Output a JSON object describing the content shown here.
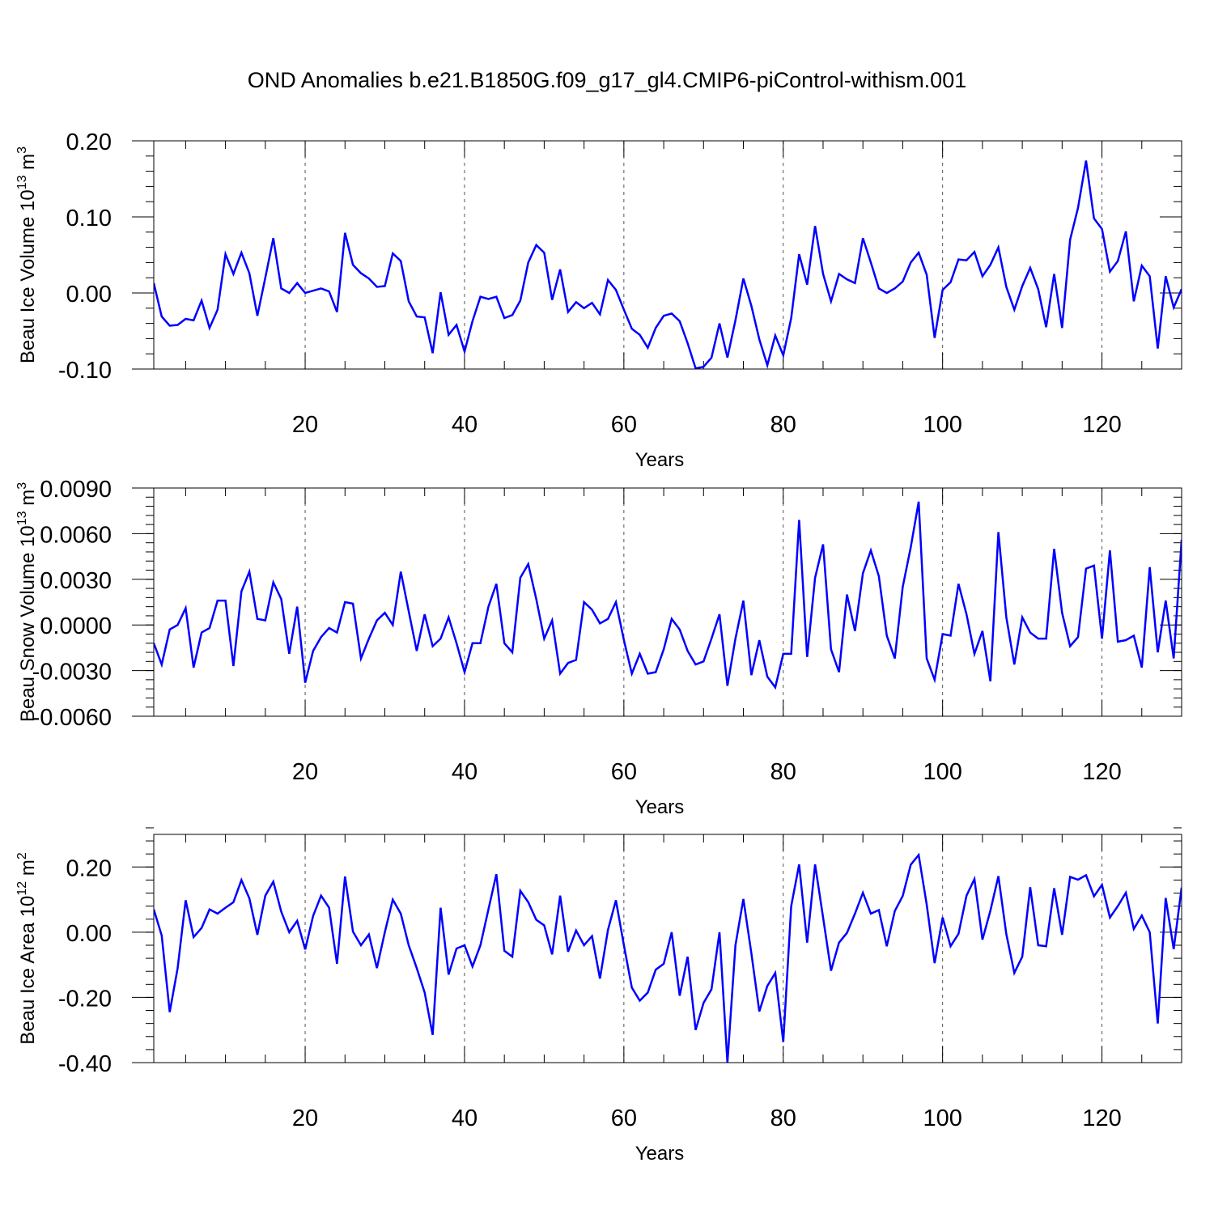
{
  "title": "OND Anomalies b.e21.B1850G.f09_g17_gl4.CMIP6-piControl-withism.001",
  "chart_data": [
    {
      "type": "line",
      "xlabel": "Years",
      "ylabel": "Beau Ice Volume 10",
      "ylabel_sup1": "13",
      "ylabel_mid": " m",
      "ylabel_sup2": "3",
      "xlim": [
        1,
        130
      ],
      "ylim": [
        -0.1,
        0.2
      ],
      "xticks": [
        20,
        40,
        60,
        80,
        100,
        120
      ],
      "yticks": [
        -0.1,
        0.0,
        0.1,
        0.2
      ],
      "ytick_labels": [
        "-0.10",
        "0.00",
        "0.10",
        "0.20"
      ],
      "grid": "x-dashed",
      "line_color": "#0000ff",
      "values": [
        0.013,
        -0.031,
        -0.043,
        -0.042,
        -0.034,
        -0.036,
        -0.01,
        -0.046,
        -0.022,
        0.051,
        0.025,
        0.053,
        0.026,
        -0.03,
        0.02,
        0.072,
        0.006,
        0.0,
        0.013,
        0.0,
        0.003,
        0.006,
        0.002,
        -0.025,
        0.079,
        0.037,
        0.026,
        0.019,
        0.008,
        0.009,
        0.052,
        0.042,
        -0.011,
        -0.031,
        -0.032,
        -0.079,
        0.001,
        -0.055,
        -0.042,
        -0.077,
        -0.037,
        -0.005,
        -0.008,
        -0.005,
        -0.033,
        -0.029,
        -0.01,
        0.04,
        0.063,
        0.053,
        -0.009,
        0.031,
        -0.025,
        -0.012,
        -0.02,
        -0.013,
        -0.028,
        0.017,
        0.004,
        -0.022,
        -0.047,
        -0.055,
        -0.072,
        -0.046,
        -0.03,
        -0.027,
        -0.037,
        -0.066,
        -0.099,
        -0.097,
        -0.085,
        -0.04,
        -0.085,
        -0.036,
        0.019,
        -0.017,
        -0.061,
        -0.095,
        -0.056,
        -0.082,
        -0.033,
        0.051,
        0.011,
        0.088,
        0.025,
        -0.011,
        0.025,
        0.018,
        0.013,
        0.072,
        0.04,
        0.006,
        0.0,
        0.006,
        0.015,
        0.04,
        0.053,
        0.024,
        -0.059,
        0.004,
        0.014,
        0.044,
        0.043,
        0.054,
        0.022,
        0.037,
        0.06,
        0.008,
        -0.022,
        0.009,
        0.033,
        0.005,
        -0.045,
        0.025,
        -0.046,
        0.07,
        0.112,
        0.174,
        0.098,
        0.084,
        0.028,
        0.042,
        0.081,
        -0.011,
        0.036,
        0.022,
        -0.073,
        0.022,
        -0.019,
        0.005
      ]
    },
    {
      "type": "line",
      "xlabel": "Years",
      "ylabel": "Beau Snow Volume 10",
      "ylabel_sup1": "13",
      "ylabel_mid": " m",
      "ylabel_sup2": "3",
      "xlim": [
        1,
        130
      ],
      "ylim": [
        -0.006,
        0.009
      ],
      "xticks": [
        20,
        40,
        60,
        80,
        100,
        120
      ],
      "yticks": [
        -0.006,
        -0.003,
        0.0,
        0.003,
        0.006,
        0.009
      ],
      "ytick_labels": [
        "-0.0060",
        "-0.0030",
        "0.0000",
        "0.0030",
        "0.0060",
        "0.0090"
      ],
      "grid": "x-dashed",
      "line_color": "#0000ff",
      "values": [
        -0.0012,
        -0.0026,
        -0.0003,
        0.0,
        0.0011,
        -0.0028,
        -0.0005,
        -0.0002,
        0.0016,
        0.0016,
        -0.0027,
        0.0022,
        0.0035,
        0.0004,
        0.0003,
        0.0028,
        0.0017,
        -0.0019,
        0.0012,
        -0.0038,
        -0.0017,
        -0.0008,
        -0.0002,
        -0.0005,
        0.0015,
        0.0014,
        -0.0022,
        -0.0009,
        0.0003,
        0.0008,
        0.0,
        0.0035,
        0.0009,
        -0.0017,
        0.0007,
        -0.0014,
        -0.0009,
        0.0005,
        -0.0012,
        -0.0031,
        -0.0012,
        -0.0012,
        0.0012,
        0.0027,
        -0.0012,
        -0.0018,
        0.0031,
        0.004,
        0.0017,
        -0.0009,
        0.0003,
        -0.0032,
        -0.0025,
        -0.0023,
        0.0015,
        0.001,
        0.0001,
        0.0004,
        0.0015,
        -0.001,
        -0.0032,
        -0.0019,
        -0.0032,
        -0.0031,
        -0.0016,
        0.0004,
        -0.0003,
        -0.0017,
        -0.0026,
        -0.0024,
        -0.0009,
        0.0007,
        -0.004,
        -0.0009,
        0.0016,
        -0.0033,
        -0.001,
        -0.0034,
        -0.0041,
        -0.0019,
        -0.0019,
        0.0069,
        -0.0021,
        0.0031,
        0.0053,
        -0.0016,
        -0.0031,
        0.002,
        -0.0004,
        0.0034,
        0.0049,
        0.0032,
        -0.0007,
        -0.0022,
        0.0025,
        0.0051,
        0.0081,
        -0.0022,
        -0.0036,
        -0.0006,
        -0.0007,
        0.0027,
        0.0007,
        -0.0019,
        -0.0004,
        -0.0037,
        0.0061,
        0.0005,
        -0.0026,
        0.0005,
        -0.0005,
        -0.0009,
        -0.0009,
        0.005,
        0.0008,
        -0.0014,
        -0.0008,
        0.0037,
        0.0039,
        -0.0009,
        0.0049,
        -0.0011,
        -0.001,
        -0.0007,
        -0.0028,
        0.0038,
        -0.0018,
        0.0016,
        -0.0022,
        0.0056
      ]
    },
    {
      "type": "line",
      "xlabel": "Years",
      "ylabel": "Beau Ice Area 10",
      "ylabel_sup1": "12",
      "ylabel_mid": " m",
      "ylabel_sup2": "2",
      "xlim": [
        1,
        130
      ],
      "ylim": [
        -0.4,
        0.3
      ],
      "xticks": [
        20,
        40,
        60,
        80,
        100,
        120
      ],
      "yticks": [
        -0.4,
        -0.2,
        0.0,
        0.2
      ],
      "ytick_labels": [
        "-0.40",
        "-0.20",
        "0.00",
        "0.20"
      ],
      "grid": "x-dashed",
      "line_color": "#0000ff",
      "values": [
        0.07,
        -0.01,
        -0.245,
        -0.11,
        0.098,
        -0.015,
        0.013,
        0.07,
        0.057,
        0.075,
        0.092,
        0.16,
        0.104,
        -0.008,
        0.112,
        0.155,
        0.063,
        0.0,
        0.035,
        -0.053,
        0.05,
        0.112,
        0.075,
        -0.097,
        0.171,
        0.002,
        -0.04,
        -0.007,
        -0.11,
        0.0,
        0.1,
        0.057,
        -0.04,
        -0.11,
        -0.185,
        -0.315,
        0.075,
        -0.13,
        -0.05,
        -0.04,
        -0.105,
        -0.04,
        0.07,
        0.178,
        -0.057,
        -0.075,
        0.127,
        0.092,
        0.038,
        0.021,
        -0.068,
        0.112,
        -0.06,
        0.005,
        -0.04,
        -0.012,
        -0.142,
        0.007,
        0.098,
        -0.04,
        -0.17,
        -0.21,
        -0.185,
        -0.115,
        -0.097,
        0.0,
        -0.195,
        -0.075,
        -0.3,
        -0.217,
        -0.175,
        0.0,
        -0.4,
        -0.04,
        0.102,
        -0.065,
        -0.243,
        -0.165,
        -0.125,
        -0.337,
        0.08,
        0.208,
        -0.032,
        0.208,
        0.045,
        -0.118,
        -0.032,
        -0.002,
        0.057,
        0.121,
        0.057,
        0.068,
        -0.043,
        0.065,
        0.111,
        0.207,
        0.237,
        0.085,
        -0.095,
        0.045,
        -0.043,
        -0.005,
        0.112,
        0.163,
        -0.023,
        0.066,
        0.172,
        -0.006,
        -0.125,
        -0.075,
        0.138,
        -0.04,
        -0.043,
        0.135,
        -0.008,
        0.17,
        0.161,
        0.175,
        0.11,
        0.145,
        0.045,
        0.08,
        0.121,
        0.01,
        0.051,
        0.0,
        -0.28,
        0.105,
        -0.052,
        0.137
      ]
    }
  ]
}
